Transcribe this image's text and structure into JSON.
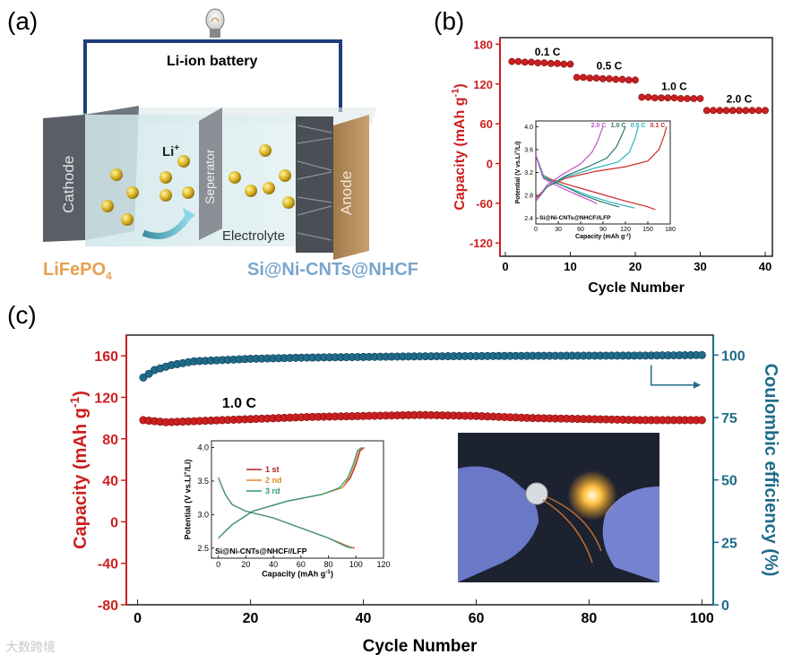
{
  "panel_a": {
    "label": "(a)",
    "battery_label": "Li-ion battery",
    "cathode": "Cathode",
    "anode": "Anode",
    "separator": "Seperator",
    "electrolyte": "Electrolyte",
    "ion": "Li",
    "ion_sup": "+",
    "cathode_material": "LiFePO",
    "cathode_material_sub": "4",
    "anode_material": "Si@Ni-CNTs@NHCF"
  },
  "panel_b": {
    "label": "(b)"
  },
  "panel_c": {
    "label": "(c)"
  },
  "watermark": "大数跨境",
  "colors": {
    "capacity_red": "#cc1f1f",
    "efficiency_blue": "#1f6b8a",
    "wire": "#1e3d7a",
    "label_orange": "#e8a050",
    "label_blue": "#7aa6cc"
  },
  "chart_data": [
    {
      "id": "b",
      "type": "scatter",
      "title": "",
      "xlabel": "Cycle Number",
      "ylabel": "Capacity (mAh g",
      "ylabel_sup": "-1",
      "ylabel_end": ")",
      "xlim": [
        0,
        40
      ],
      "ylim": [
        -140,
        190
      ],
      "xticks": [
        0,
        10,
        20,
        30,
        40
      ],
      "yticks": [
        -120,
        -60,
        0,
        60,
        120,
        180
      ],
      "x": [
        1,
        2,
        3,
        4,
        5,
        6,
        7,
        8,
        9,
        10,
        11,
        12,
        13,
        14,
        15,
        16,
        17,
        18,
        19,
        20,
        21,
        22,
        23,
        24,
        25,
        26,
        27,
        28,
        29,
        30,
        31,
        32,
        33,
        34,
        35,
        36,
        37,
        38,
        39,
        40
      ],
      "series": [
        {
          "name": "Capacity",
          "values": [
            154,
            154,
            153,
            153,
            152,
            152,
            151,
            151,
            150,
            150,
            130,
            130,
            129,
            129,
            128,
            128,
            127,
            127,
            126,
            126,
            100,
            100,
            99,
            99,
            99,
            99,
            98,
            98,
            98,
            98,
            80,
            80,
            80,
            80,
            80,
            80,
            80,
            80,
            80,
            80
          ]
        }
      ],
      "annotations": [
        {
          "text": "0.1 C",
          "x": 6.5,
          "y": 163
        },
        {
          "text": "0.5 C",
          "x": 16,
          "y": 142
        },
        {
          "text": "1.0 C",
          "x": 26,
          "y": 111
        },
        {
          "text": "2.0 C",
          "x": 36,
          "y": 92
        }
      ],
      "inset": {
        "type": "line",
        "xlabel": "Capacity (mAh g",
        "xlabel_sup": "-1",
        "xlabel_end": ")",
        "ylabel": "Potential (V vs.Li",
        "ylabel_sup": "+",
        "ylabel_end": "/Li)",
        "annotation": "Si@Ni-CNTs@NHCF//LFP",
        "xlim": [
          0,
          180
        ],
        "ylim": [
          2.3,
          4.1
        ],
        "xticks": [
          0,
          30,
          60,
          90,
          120,
          150,
          180
        ],
        "yticks": [
          2.4,
          2.8,
          3.2,
          3.6,
          4.0
        ],
        "series": [
          {
            "name": "0.1 C",
            "color": "#cc2a2a",
            "charge": {
              "x": [
                0,
                15,
                40,
                80,
                120,
                150,
                165,
                172,
                175
              ],
              "y": [
                2.75,
                2.95,
                3.1,
                3.22,
                3.3,
                3.4,
                3.6,
                3.85,
                4.0
              ]
            },
            "discharge": {
              "x": [
                0,
                10,
                20,
                40,
                80,
                120,
                150,
                160
              ],
              "y": [
                3.5,
                3.15,
                3.08,
                3.0,
                2.85,
                2.7,
                2.6,
                2.55
              ]
            }
          },
          {
            "name": "0.5 C",
            "color": "#2ab5bf",
            "charge": {
              "x": [
                0,
                15,
                40,
                80,
                110,
                125,
                133,
                137
              ],
              "y": [
                2.7,
                2.95,
                3.12,
                3.28,
                3.38,
                3.55,
                3.8,
                4.0
              ]
            },
            "discharge": {
              "x": [
                0,
                10,
                20,
                40,
                70,
                100,
                125,
                132
              ],
              "y": [
                3.5,
                3.15,
                3.06,
                2.95,
                2.8,
                2.68,
                2.6,
                2.58
              ]
            }
          },
          {
            "name": "1.0 C",
            "color": "#2a7a6a",
            "charge": {
              "x": [
                0,
                15,
                40,
                70,
                95,
                108,
                115,
                120
              ],
              "y": [
                2.7,
                2.95,
                3.14,
                3.3,
                3.45,
                3.65,
                3.85,
                4.0
              ]
            },
            "discharge": {
              "x": [
                0,
                10,
                20,
                40,
                60,
                85,
                105,
                112
              ],
              "y": [
                3.5,
                3.12,
                3.05,
                2.95,
                2.82,
                2.7,
                2.62,
                2.6
              ]
            }
          },
          {
            "name": "2.0 C",
            "color": "#c050c8",
            "charge": {
              "x": [
                0,
                15,
                35,
                60,
                75,
                83,
                87,
                90
              ],
              "y": [
                2.7,
                2.98,
                3.16,
                3.35,
                3.55,
                3.75,
                3.9,
                4.0
              ]
            },
            "discharge": {
              "x": [
                0,
                10,
                20,
                40,
                60,
                75,
                82
              ],
              "y": [
                3.5,
                3.1,
                3.02,
                2.9,
                2.78,
                2.7,
                2.65
              ]
            }
          }
        ]
      }
    },
    {
      "id": "c",
      "type": "scatter",
      "title": "",
      "xlabel": "Cycle Number",
      "ylabel": "Capacity (mAh g",
      "ylabel_sup": "-1",
      "ylabel_end": ")",
      "y2label": "Coulombic efficiency (%)",
      "xlim": [
        -2,
        102
      ],
      "ylim": [
        -80,
        180
      ],
      "y2lim": [
        0,
        108
      ],
      "xticks": [
        0,
        20,
        40,
        60,
        80,
        100
      ],
      "yticks": [
        -80,
        -40,
        0,
        40,
        80,
        120,
        160
      ],
      "y2ticks": [
        0,
        25,
        50,
        75,
        100
      ],
      "annotations": [
        {
          "text": "1.0 C",
          "x": 18,
          "y": 110
        }
      ],
      "capacity_points": [
        [
          1,
          98
        ],
        [
          5,
          96
        ],
        [
          10,
          97
        ],
        [
          20,
          99
        ],
        [
          30,
          101
        ],
        [
          40,
          102
        ],
        [
          50,
          103
        ],
        [
          60,
          102
        ],
        [
          70,
          100
        ],
        [
          80,
          99
        ],
        [
          90,
          98
        ],
        [
          100,
          98
        ]
      ],
      "efficiency_points": [
        [
          1,
          91
        ],
        [
          3,
          94
        ],
        [
          6,
          96
        ],
        [
          10,
          97.5
        ],
        [
          15,
          98
        ],
        [
          20,
          98.5
        ],
        [
          30,
          99
        ],
        [
          50,
          99.5
        ],
        [
          70,
          99.7
        ],
        [
          90,
          99.8
        ],
        [
          100,
          100
        ]
      ],
      "inset": {
        "type": "line",
        "xlabel": "Capacity (mAh g",
        "xlabel_sup": "-1",
        "xlabel_end": ")",
        "ylabel": "Potential (V vs.Li",
        "ylabel_sup": "+",
        "ylabel_end": "/Li)",
        "annotation": "Si@Ni-CNTs@NHCF//LFP",
        "xlim": [
          -5,
          120
        ],
        "ylim": [
          2.35,
          4.1
        ],
        "xticks": [
          0,
          20,
          40,
          60,
          80,
          100,
          120
        ],
        "yticks": [
          2.5,
          3.0,
          3.5,
          4.0
        ],
        "series": [
          {
            "name": "1 st",
            "color": "#b02020",
            "charge": {
              "x": [
                0,
                10,
                25,
                50,
                75,
                90,
                96,
                100,
                103,
                106
              ],
              "y": [
                2.65,
                2.85,
                3.05,
                3.2,
                3.3,
                3.4,
                3.55,
                3.75,
                3.95,
                4.0
              ]
            },
            "discharge": {
              "x": [
                0,
                5,
                10,
                20,
                40,
                60,
                80,
                95,
                99
              ],
              "y": [
                3.55,
                3.3,
                3.15,
                3.05,
                2.95,
                2.8,
                2.65,
                2.52,
                2.5
              ]
            }
          },
          {
            "name": "2 nd",
            "color": "#e08a2a",
            "charge": {
              "x": [
                0,
                10,
                25,
                50,
                75,
                90,
                95,
                99,
                102,
                105
              ],
              "y": [
                2.65,
                2.85,
                3.05,
                3.2,
                3.3,
                3.4,
                3.55,
                3.75,
                3.95,
                4.0
              ]
            },
            "discharge": {
              "x": [
                0,
                5,
                10,
                20,
                40,
                60,
                80,
                94,
                98
              ],
              "y": [
                3.55,
                3.3,
                3.15,
                3.05,
                2.95,
                2.8,
                2.65,
                2.52,
                2.5
              ]
            }
          },
          {
            "name": "3 rd",
            "color": "#2a9a7a",
            "charge": {
              "x": [
                0,
                10,
                25,
                50,
                75,
                88,
                94,
                98,
                101,
                104
              ],
              "y": [
                2.65,
                2.85,
                3.05,
                3.2,
                3.3,
                3.4,
                3.55,
                3.75,
                3.95,
                4.0
              ]
            },
            "discharge": {
              "x": [
                0,
                5,
                10,
                20,
                40,
                60,
                80,
                93,
                97
              ],
              "y": [
                3.55,
                3.3,
                3.15,
                3.05,
                2.95,
                2.8,
                2.65,
                2.52,
                2.5
              ]
            }
          }
        ]
      }
    }
  ]
}
